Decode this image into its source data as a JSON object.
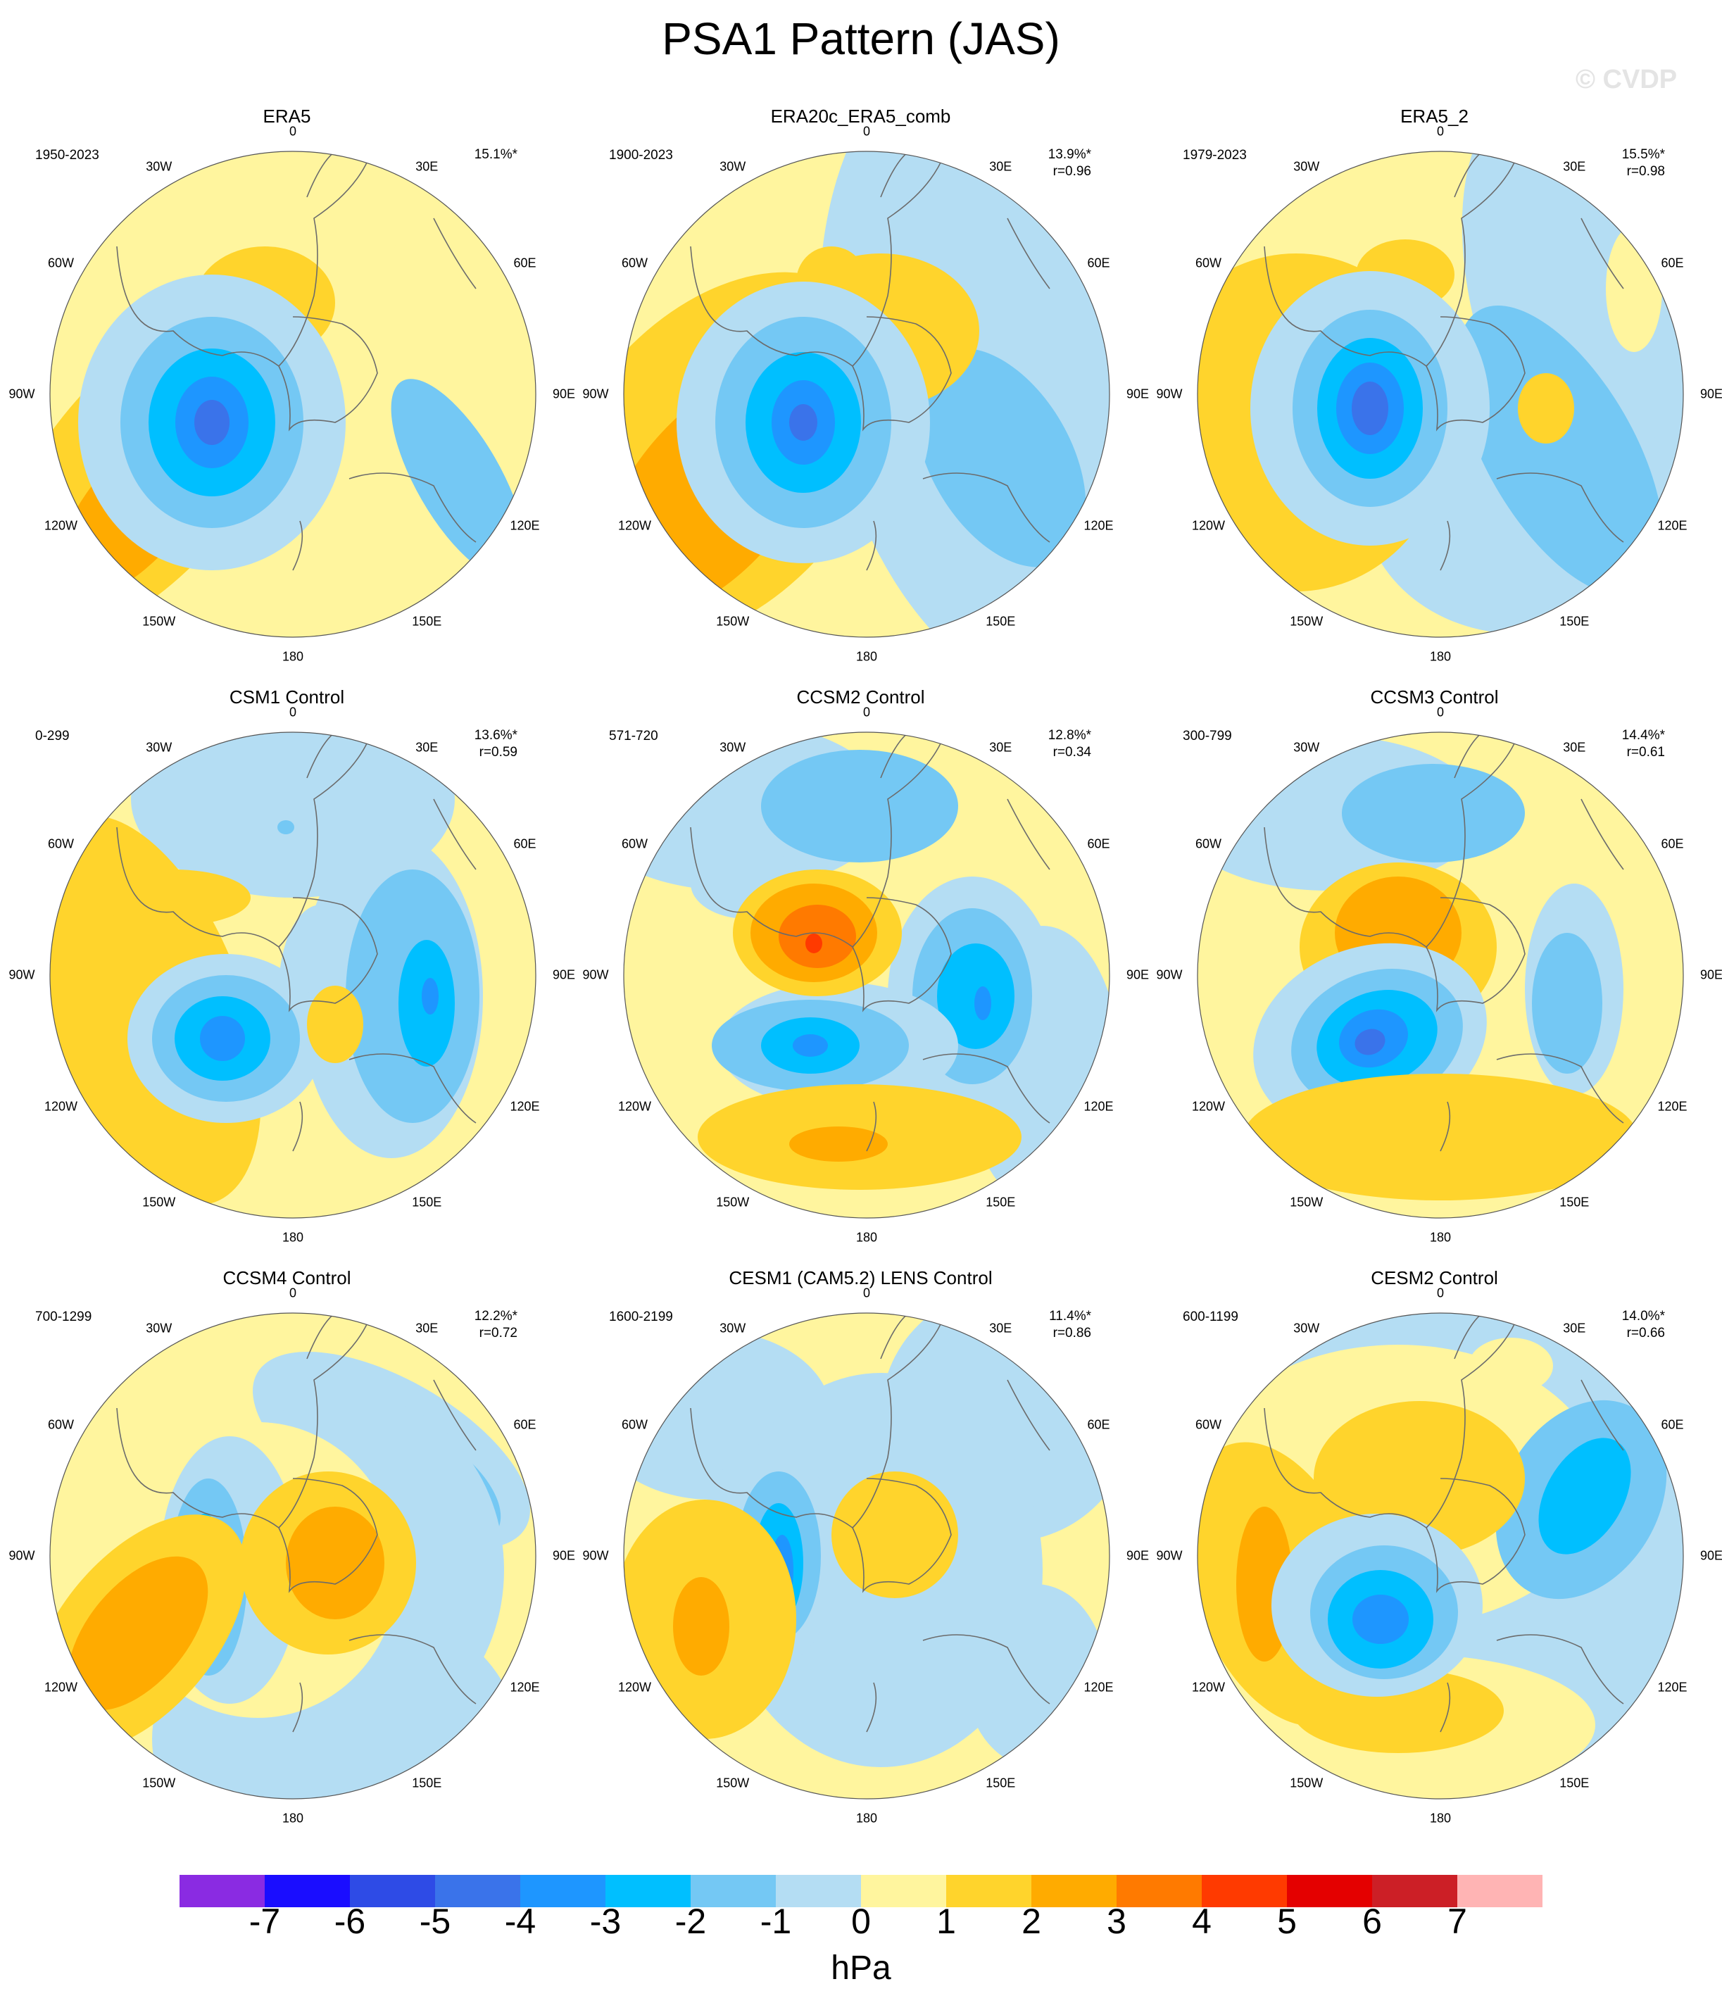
{
  "title": "PSA1 Pattern (JAS)",
  "watermark": "© CVDP",
  "longitude_labels": [
    "0",
    "30E",
    "60E",
    "90E",
    "120E",
    "150E",
    "180",
    "150W",
    "120W",
    "90W",
    "60W",
    "30W"
  ],
  "panels": [
    {
      "name": "ERA5",
      "period": "1950-2023",
      "pct": "15.1%*",
      "r": ""
    },
    {
      "name": "ERA20c_ERA5_comb",
      "period": "1900-2023",
      "pct": "13.9%*",
      "r": "r=0.96"
    },
    {
      "name": "ERA5_2",
      "period": "1979-2023",
      "pct": "15.5%*",
      "r": "r=0.98"
    },
    {
      "name": "CSM1 Control",
      "period": "0-299",
      "pct": "13.6%*",
      "r": "r=0.59"
    },
    {
      "name": "CCSM2 Control",
      "period": "571-720",
      "pct": "12.8%*",
      "r": "r=0.34"
    },
    {
      "name": "CCSM3 Control",
      "period": "300-799",
      "pct": "14.4%*",
      "r": "r=0.61"
    },
    {
      "name": "CCSM4 Control",
      "period": "700-1299",
      "pct": "12.2%*",
      "r": "r=0.72"
    },
    {
      "name": "CESM1 (CAM5.2) LENS Control",
      "period": "1600-2199",
      "pct": "11.4%*",
      "r": "r=0.86"
    },
    {
      "name": "CESM2 Control",
      "period": "600-1199",
      "pct": "14.0%*",
      "r": "r=0.66"
    }
  ],
  "colorbar": {
    "unit": "hPa",
    "labels": [
      "-7",
      "-6",
      "-5",
      "-4",
      "-3",
      "-2",
      "-1",
      "0",
      "1",
      "2",
      "3",
      "4",
      "5",
      "6",
      "7"
    ],
    "colors": [
      "#8a2be2",
      "#1a0dff",
      "#2e4be6",
      "#3a73ea",
      "#1e96ff",
      "#00bfff",
      "#74c8f4",
      "#b4ddf3",
      "#fff59e",
      "#ffd42c",
      "#ffab00",
      "#ff7a00",
      "#ff3a00",
      "#e40000",
      "#cc1f26",
      "#ffb4b4"
    ]
  }
}
